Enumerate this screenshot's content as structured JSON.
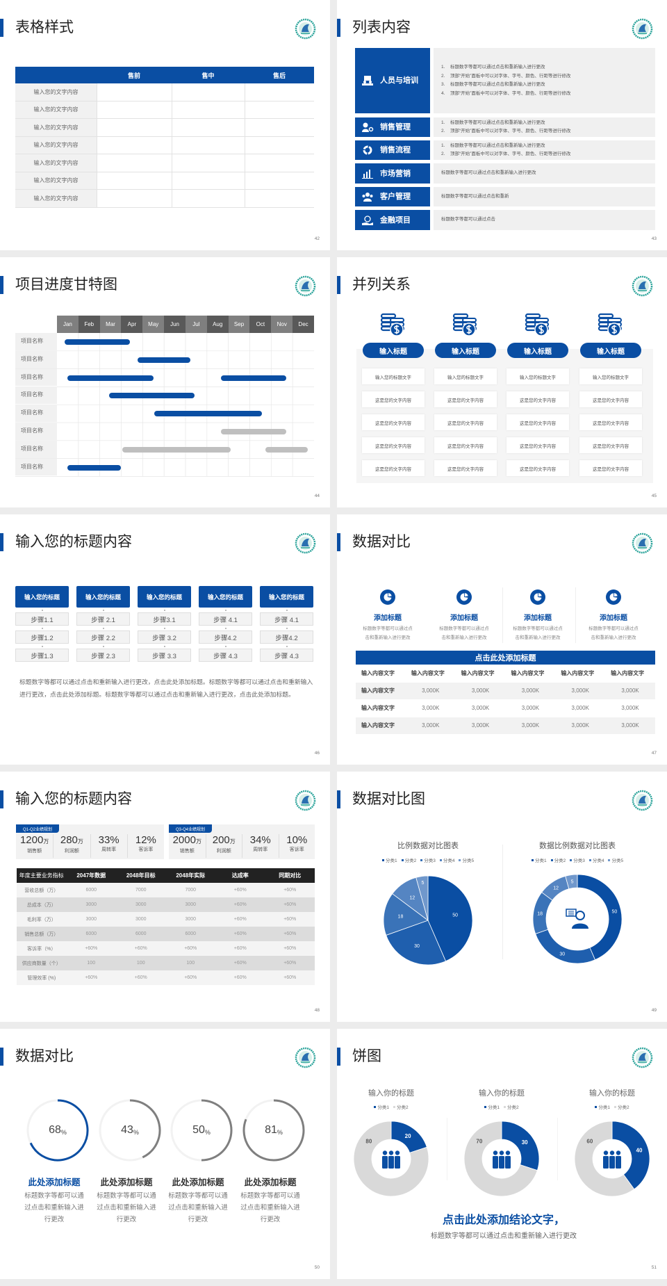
{
  "colors": {
    "accent": "#0a4ea3",
    "gray_bar": "#bfbfbf",
    "ring_gray": "#7f7f7f",
    "logo_teal": "#2aa39a"
  },
  "slides": [
    {
      "page": "42",
      "title": "表格样式",
      "table": {
        "headers": [
          "",
          "售前",
          "售中",
          "售后"
        ],
        "rows": [
          "输入您的文字内容",
          "输入您的文字内容",
          "输入您的文字内容",
          "输入您的文字内容",
          "输入您的文字内容",
          "输入您的文字内容",
          "输入您的文字内容"
        ]
      }
    },
    {
      "page": "43",
      "title": "列表内容",
      "items": [
        {
          "label": "人员与培训",
          "icon": "training-icon",
          "lines": [
            {
              "n": "1.",
              "text": "标题数字等都可以通过点击和重新输入进行更改"
            },
            {
              "n": "2.",
              "text": "顶部“开始”面板中可以对字体、字号、颜色、行距等进行修改"
            },
            {
              "n": "3.",
              "text": "标题数字等都可以通过点击和重新输入进行更改"
            },
            {
              "n": "4.",
              "text": "顶部“开始”面板中可以对字体、字号、颜色、行距等进行修改"
            }
          ]
        },
        {
          "label": "销售管理",
          "icon": "user-gear-icon",
          "lines": [
            {
              "n": "1.",
              "text": "标题数字等都可以通过点击和重新输入进行更改"
            },
            {
              "n": "2.",
              "text": "顶部“开始”面板中可以对字体、字号、颜色、行距等进行修改"
            }
          ]
        },
        {
          "label": "销售流程",
          "icon": "cycle-icon",
          "lines": [
            {
              "n": "1.",
              "text": "标题数字等都可以通过点击和重新输入进行更改"
            },
            {
              "n": "2.",
              "text": "顶部“开始”面板中可以对字体、字号、颜色、行距等进行修改"
            }
          ]
        },
        {
          "label": "市场营销",
          "icon": "bar-chart-icon",
          "lines": [
            {
              "n": "",
              "text": "标题数字等都可以通过点击和重新输入进行更改"
            }
          ]
        },
        {
          "label": "客户管理",
          "icon": "users-icon",
          "lines": [
            {
              "n": "",
              "text": "标题数字等都可以通过点击和重新"
            }
          ]
        },
        {
          "label": "金融项目",
          "icon": "money-hand-icon",
          "lines": [
            {
              "n": "",
              "text": "标题数字等都可以通过点击"
            }
          ]
        }
      ]
    },
    {
      "page": "44",
      "title": "项目进度甘特图",
      "gantt": {
        "months": [
          "Jan",
          "Feb",
          "Mar",
          "Apr",
          "May",
          "Jun",
          "Jul",
          "Aug",
          "Sep",
          "Oct",
          "Nov",
          "Dec"
        ],
        "rows": [
          {
            "label": "项目名称",
            "bars": [
              {
                "start": 0.35,
                "end": 3.4,
                "color": "blue"
              }
            ]
          },
          {
            "label": "项目名称",
            "bars": [
              {
                "start": 3.77,
                "end": 6.23,
                "color": "blue"
              }
            ]
          },
          {
            "label": "项目名称",
            "bars": [
              {
                "start": 0.5,
                "end": 4.5,
                "color": "blue"
              },
              {
                "start": 7.66,
                "end": 10.7,
                "color": "blue"
              }
            ]
          },
          {
            "label": "项目名称",
            "bars": [
              {
                "start": 2.43,
                "end": 6.43,
                "color": "blue"
              }
            ]
          },
          {
            "label": "项目名称",
            "bars": [
              {
                "start": 4.55,
                "end": 9.58,
                "color": "blue"
              }
            ]
          },
          {
            "label": "项目名称",
            "bars": [
              {
                "start": 7.66,
                "end": 10.7,
                "color": "gray"
              }
            ]
          },
          {
            "label": "项目名称",
            "bars": [
              {
                "start": 3.05,
                "end": 8.1,
                "color": "gray"
              },
              {
                "start": 9.74,
                "end": 11.7,
                "color": "gray"
              }
            ]
          },
          {
            "label": "项目名称",
            "bars": [
              {
                "start": 0.5,
                "end": 3.0,
                "color": "blue"
              }
            ]
          }
        ]
      }
    },
    {
      "page": "45",
      "title": "并列关系",
      "columns": [
        {
          "title": "输入标题",
          "items": [
            "输入您的标题文字",
            "这是您的文字内容",
            "这是您的文字内容",
            "这是您的文字内容",
            "这是您的文字内容"
          ]
        },
        {
          "title": "输入标题",
          "items": [
            "输入您的标题文字",
            "这是您的文字内容",
            "这是您的文字内容",
            "这是您的文字内容",
            "这是您的文字内容"
          ]
        },
        {
          "title": "输入标题",
          "items": [
            "输入您的标题文字",
            "这是您的文字内容",
            "这是您的文字内容",
            "这是您的文字内容",
            "这是您的文字内容"
          ]
        },
        {
          "title": "输入标题",
          "items": [
            "输入您的标题文字",
            "这是您的文字内容",
            "这是您的文字内容",
            "这是您的文字内容",
            "这是您的文字内容"
          ]
        }
      ]
    },
    {
      "page": "46",
      "title": "输入您的标题内容",
      "columns": [
        {
          "title": "输入您的标题",
          "steps": [
            "步骤1.1",
            "步骤1.2",
            "步骤1.3"
          ]
        },
        {
          "title": "输入您的标题",
          "steps": [
            "步骤 2.1",
            "步骤 2.2",
            "步骤 2.3"
          ]
        },
        {
          "title": "输入您的标题",
          "steps": [
            "步骤3.1",
            "步骤 3.2",
            "步骤 3.3"
          ]
        },
        {
          "title": "输入您的标题",
          "steps": [
            "步骤 4.1",
            "步骤4.2",
            "步骤 4.3"
          ]
        },
        {
          "title": "输入您的标题",
          "steps": [
            "步骤 4.1",
            "步骤4.2",
            "步骤 4.3"
          ]
        }
      ],
      "paragraph": "标题数字等都可以通过点击和重新输入进行更改，点击此处添加标题。标题数字等都可以通过点击和重新输入进行更改，点击此处添加标题。标题数字等都可以通过点击和重新输入进行更改，点击此处添加标题。"
    },
    {
      "page": "47",
      "title": "数据对比",
      "features": [
        {
          "title": "添加标题",
          "lines": [
            "标题数字等都可以通过点",
            "击和重新输入进行更改"
          ]
        },
        {
          "title": "添加标题",
          "lines": [
            "标题数字等都可以通过点",
            "击和重新输入进行更改"
          ]
        },
        {
          "title": "添加标题",
          "lines": [
            "标题数字等都可以通过点",
            "击和重新输入进行更改"
          ]
        },
        {
          "title": "添加标题",
          "lines": [
            "标题数字等都可以通过点",
            "击和重新输入进行更改"
          ]
        }
      ],
      "table": {
        "title": "点击此处添加标题",
        "header": [
          "输入内容文字",
          "输入内容文字",
          "输入内容文字",
          "输入内容文字",
          "输入内容文字",
          "输入内容文字"
        ],
        "rows": [
          [
            "输入内容文字",
            "3,000K",
            "3,000K",
            "3,000K",
            "3,000K",
            "3,000K"
          ],
          [
            "输入内容文字",
            "3,000K",
            "3,000K",
            "3,000K",
            "3,000K",
            "3,000K"
          ],
          [
            "输入内容文字",
            "3,000K",
            "3,000K",
            "3,000K",
            "3,000K",
            "3,000K"
          ]
        ]
      }
    },
    {
      "page": "48",
      "title": "输入您的标题内容",
      "panels": [
        {
          "tag": "Q1-Q2业绩规划",
          "stats": [
            {
              "value": "1200",
              "unit": "万",
              "label": "销售额"
            },
            {
              "value": "280",
              "unit": "万",
              "label": "利润额"
            },
            {
              "value": "33%",
              "unit": "",
              "label": "周转率"
            },
            {
              "value": "12%",
              "unit": "",
              "label": "客诉率"
            }
          ]
        },
        {
          "tag": "Q3-Q4业绩规划",
          "stats": [
            {
              "value": "2000",
              "unit": "万",
              "label": "销售额"
            },
            {
              "value": "200",
              "unit": "万",
              "label": "利润额"
            },
            {
              "value": "34%",
              "unit": "",
              "label": "周转率"
            },
            {
              "value": "10%",
              "unit": "",
              "label": "客诉率"
            }
          ]
        }
      ],
      "table": {
        "header": [
          "年度主要业务指标",
          "2047年数据",
          "2048年目标",
          "2048年实际",
          "达成率",
          "同期对比"
        ],
        "rows": [
          [
            "营收总额（万）",
            "6000",
            "7000",
            "7000",
            "+60%",
            "+60%"
          ],
          [
            "总成本（万）",
            "3000",
            "3000",
            "3000",
            "+60%",
            "+60%"
          ],
          [
            "毛利率（万）",
            "3000",
            "3000",
            "3000",
            "+60%",
            "+60%"
          ],
          [
            "销售总额（万）",
            "6000",
            "6000",
            "6000",
            "+60%",
            "+60%"
          ],
          [
            "客诉率（%）",
            "+60%",
            "+60%",
            "+60%",
            "+60%",
            "+60%"
          ],
          [
            "供应商数量（个）",
            "100",
            "100",
            "100",
            "+60%",
            "+60%"
          ],
          [
            "管理效率 (%)",
            "+60%",
            "+60%",
            "+60%",
            "+60%",
            "+60%"
          ]
        ]
      }
    },
    {
      "page": "49",
      "title": "数据对比图",
      "charts": [
        {
          "type": "pie",
          "title": "比例数据对比图表",
          "categories": [
            "分类1",
            "分类2",
            "分类3",
            "分类4",
            "分类5"
          ],
          "values": [
            50,
            30,
            18,
            12,
            5
          ],
          "colors": [
            "#0a4ea3",
            "#1f5fae",
            "#3a73b8",
            "#5585c2",
            "#7098cc"
          ]
        },
        {
          "type": "donut",
          "title": "数据比例数据对比图表",
          "categories": [
            "分类1",
            "分类2",
            "分类3",
            "分类4",
            "分类5"
          ],
          "values": [
            50,
            30,
            18,
            12,
            5
          ],
          "colors": [
            "#0a4ea3",
            "#1f5fae",
            "#3a73b8",
            "#5585c2",
            "#7098cc"
          ]
        }
      ]
    },
    {
      "page": "50",
      "title": "数据对比",
      "rings": [
        {
          "value": "68",
          "unit": "%",
          "percent": 68,
          "color": "#0a4ea3",
          "title": "此处添加标题",
          "lines": [
            "标题数字等都可以通",
            "过点击和重新输入进",
            "行更改"
          ]
        },
        {
          "value": "43",
          "unit": "%",
          "percent": 43,
          "color": "#7f7f7f",
          "title": "此处添加标题",
          "lines": [
            "标题数字等都可以通",
            "过点击和重新输入进",
            "行更改"
          ]
        },
        {
          "value": "50",
          "unit": "%",
          "percent": 50,
          "color": "#7f7f7f",
          "title": "此处添加标题",
          "lines": [
            "标题数字等都可以通",
            "过点击和重新输入进",
            "行更改"
          ]
        },
        {
          "value": "81",
          "unit": "%",
          "percent": 81,
          "color": "#7f7f7f",
          "title": "此处添加标题",
          "lines": [
            "标题数字等都可以通",
            "过点击和重新输入进",
            "行更改"
          ]
        }
      ]
    },
    {
      "page": "51",
      "title": "饼图",
      "donuts": [
        {
          "title": "输入你的标题",
          "categories": [
            "分类1",
            "分类2"
          ],
          "values": [
            20,
            80
          ],
          "labels": [
            "20",
            "80"
          ]
        },
        {
          "title": "输入你的标题",
          "categories": [
            "分类1",
            "分类2"
          ],
          "values": [
            30,
            70
          ],
          "labels": [
            "30",
            "70"
          ]
        },
        {
          "title": "输入你的标题",
          "categories": [
            "分类1",
            "分类2"
          ],
          "values": [
            40,
            60
          ],
          "labels": [
            "40",
            "60"
          ]
        }
      ],
      "conclusion": "点击此处添加结论文字，",
      "subtext": "标题数字等都可以通过点击和重新输入进行更改"
    }
  ]
}
